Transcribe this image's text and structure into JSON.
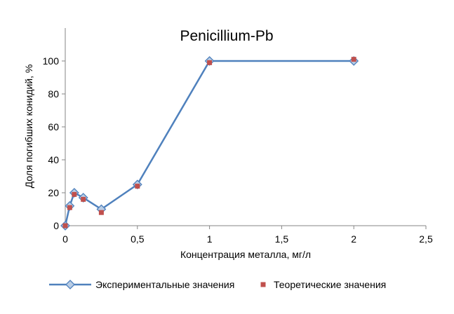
{
  "chart_data": {
    "type": "line",
    "title": "Penicillium-Pb",
    "xlabel": "Концентрация металла, мг/л",
    "ylabel": "Доля погибших конидий, %",
    "xlim": [
      0,
      2.5
    ],
    "ylim": [
      0,
      120
    ],
    "x_ticks": [
      0,
      0.5,
      1,
      1.5,
      2,
      2.5
    ],
    "x_tick_labels": [
      "0",
      "0,5",
      "1",
      "1,5",
      "2",
      "2,5"
    ],
    "y_ticks": [
      0,
      20,
      40,
      60,
      80,
      100
    ],
    "y_tick_labels": [
      "0",
      "20",
      "40",
      "60",
      "80",
      "100"
    ],
    "grid": false,
    "legend_position": "bottom",
    "series": [
      {
        "name": "Экспериментальные значения",
        "marker": "diamond",
        "line": true,
        "color": "#4F81BD",
        "x": [
          0,
          0.031,
          0.0625,
          0.125,
          0.25,
          0.5,
          1,
          2
        ],
        "y": [
          0,
          12,
          20,
          17,
          10,
          25,
          100,
          100
        ]
      },
      {
        "name": "Теоретические значения",
        "marker": "square",
        "line": false,
        "color": "#C0504D",
        "x": [
          0,
          0.031,
          0.0625,
          0.125,
          0.25,
          0.5,
          1,
          2
        ],
        "y": [
          0,
          11,
          19,
          16,
          8,
          24,
          99,
          101
        ]
      }
    ]
  }
}
